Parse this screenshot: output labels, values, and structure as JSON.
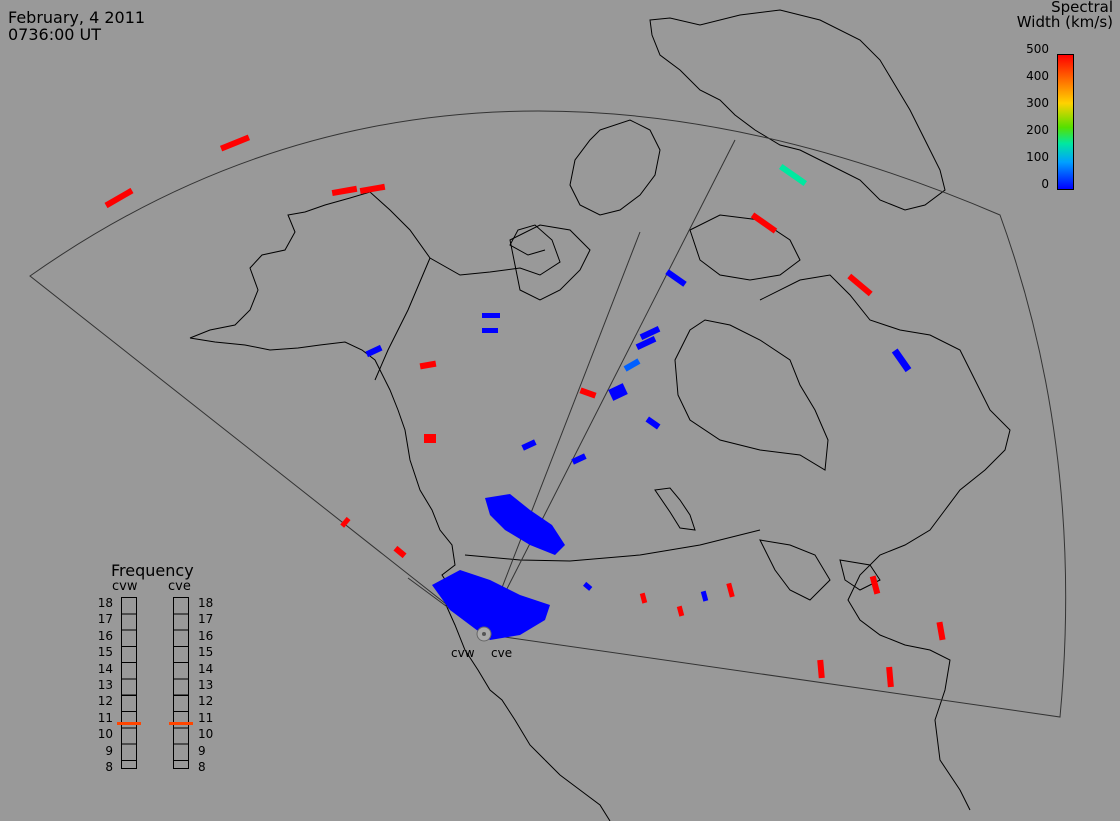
{
  "header": {
    "date": "February, 4 2011",
    "time": "0736:00 UT"
  },
  "colorbar": {
    "title_line1": "Spectral",
    "title_line2": "Width (km/s)",
    "ticks": [
      "500",
      "400",
      "300",
      "200",
      "100",
      "0"
    ],
    "colors": [
      "#0000ff",
      "#00a0ff",
      "#00e8a0",
      "#55e000",
      "#ffd200",
      "#ff6a00",
      "#ff0000"
    ]
  },
  "frequency": {
    "title": "Frequency",
    "radars": [
      "cvw",
      "cve"
    ],
    "ticks": [
      "18",
      "17",
      "16",
      "15",
      "14",
      "13",
      "12",
      "11",
      "10",
      "9",
      "8"
    ],
    "current_mhz": {
      "cvw": 10.7,
      "cve": 10.7
    },
    "marker_color": "#ff4500"
  },
  "radar_labels": [
    "cvw",
    "cve"
  ]
}
